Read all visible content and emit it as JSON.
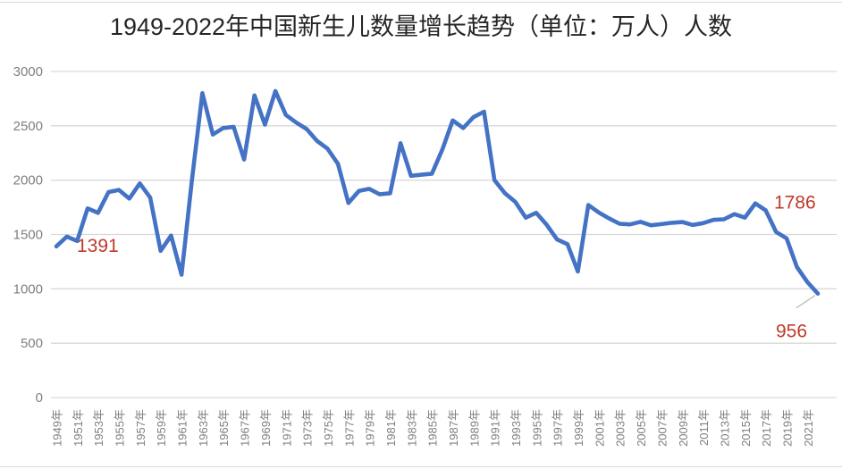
{
  "title": "1949-2022年中国新生儿数量增长趋势（单位：万人）人数",
  "chart_data": {
    "type": "line",
    "title": "1949-2022年中国新生儿数量增长趋势（单位：万人）人数",
    "unit": "万人",
    "x": [
      1949,
      1950,
      1951,
      1952,
      1953,
      1954,
      1955,
      1956,
      1957,
      1958,
      1959,
      1960,
      1961,
      1962,
      1963,
      1964,
      1965,
      1966,
      1967,
      1968,
      1969,
      1970,
      1971,
      1972,
      1973,
      1974,
      1975,
      1976,
      1977,
      1978,
      1979,
      1980,
      1981,
      1982,
      1983,
      1984,
      1985,
      1986,
      1987,
      1988,
      1989,
      1990,
      1991,
      1992,
      1993,
      1994,
      1995,
      1996,
      1997,
      1998,
      1999,
      2000,
      2001,
      2002,
      2003,
      2004,
      2005,
      2006,
      2007,
      2008,
      2009,
      2010,
      2011,
      2012,
      2013,
      2014,
      2015,
      2016,
      2017,
      2018,
      2019,
      2020,
      2021,
      2022
    ],
    "values": [
      1391,
      1480,
      1440,
      1740,
      1700,
      1890,
      1910,
      1830,
      1970,
      1840,
      1350,
      1490,
      1130,
      2000,
      2800,
      2420,
      2480,
      2490,
      2190,
      2780,
      2510,
      2820,
      2600,
      2530,
      2470,
      2360,
      2290,
      2150,
      1790,
      1900,
      1920,
      1870,
      1880,
      2340,
      2040,
      2050,
      2060,
      2280,
      2550,
      2480,
      2580,
      2630,
      2000,
      1880,
      1800,
      1655,
      1700,
      1590,
      1455,
      1410,
      1160,
      1771,
      1702,
      1647,
      1599,
      1593,
      1617,
      1585,
      1595,
      1608,
      1615,
      1588,
      1604,
      1635,
      1640,
      1687,
      1655,
      1786,
      1723,
      1523,
      1465,
      1200,
      1062,
      956
    ],
    "x_tick_labels": [
      "1949年",
      "1951年",
      "1953年",
      "1955年",
      "1957年",
      "1959年",
      "1961年",
      "1963年",
      "1965年",
      "1967年",
      "1969年",
      "1971年",
      "1973年",
      "1975年",
      "1977年",
      "1979年",
      "1981年",
      "1983年",
      "1985年",
      "1987年",
      "1989年",
      "1991年",
      "1993年",
      "1995年",
      "1997年",
      "1999年",
      "2001年",
      "2003年",
      "2005年",
      "2007年",
      "2009年",
      "2011年",
      "2013年",
      "2015年",
      "2017年",
      "2019年",
      "2021年"
    ],
    "y_ticks": [
      0,
      500,
      1000,
      1500,
      2000,
      2500,
      3000
    ],
    "ylim": [
      0,
      3000
    ],
    "grid": true,
    "legend": "none",
    "line_color": "#4472C4",
    "gridline_color": "#d9d9d9",
    "axis_label_color": "#7f7f7f",
    "annotation_color": "#C0392B",
    "leader_line_color": "#bfbfbf",
    "annotations": [
      {
        "text": "1391",
        "year": 1949,
        "value": 1391
      },
      {
        "text": "1786",
        "year": 2016,
        "value": 1786
      },
      {
        "text": "956",
        "year": 2022,
        "value": 956
      }
    ]
  }
}
